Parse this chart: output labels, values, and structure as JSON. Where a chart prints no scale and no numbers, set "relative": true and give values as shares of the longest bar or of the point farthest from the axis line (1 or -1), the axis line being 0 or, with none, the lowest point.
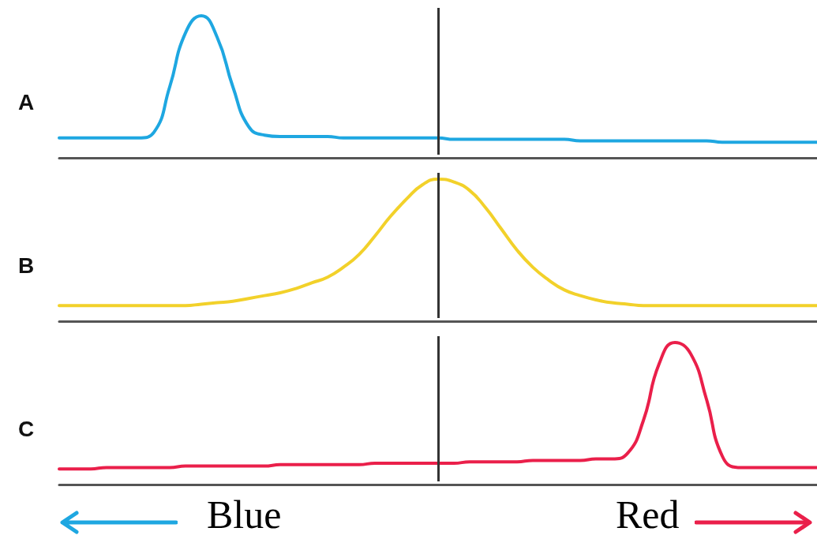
{
  "chart_data": [
    {
      "type": "line",
      "title": "A",
      "relative": true,
      "tick_labels": false,
      "grid": false,
      "marker": "none",
      "categories": [
        null,
        null,
        null,
        null,
        null,
        null,
        null,
        null,
        null,
        null,
        null,
        null,
        null,
        null,
        null,
        null,
        null,
        null,
        null,
        null,
        null,
        null,
        null,
        null,
        null,
        null,
        null,
        null,
        null,
        null,
        null,
        null,
        null,
        null,
        null,
        null,
        null,
        null,
        null,
        null,
        null,
        null,
        null,
        null,
        null,
        null,
        null,
        null,
        null
      ],
      "series": [
        {
          "color": "#1ea7e1",
          "values": [
            0.14,
            0.14,
            0.14,
            0.14,
            0.14,
            0.14,
            0.18,
            0.5,
            0.88,
            1.0,
            0.85,
            0.5,
            0.22,
            0.16,
            0.15,
            0.15,
            0.15,
            0.15,
            0.14,
            0.14,
            0.14,
            0.14,
            0.14,
            0.14,
            0.14,
            0.13,
            0.13,
            0.13,
            0.13,
            0.13,
            0.13,
            0.13,
            0.13,
            0.12,
            0.12,
            0.12,
            0.12,
            0.12,
            0.12,
            0.12,
            0.12,
            0.12,
            0.11,
            0.11,
            0.11,
            0.11,
            0.11,
            0.11,
            0.11
          ]
        }
      ]
    },
    {
      "type": "line",
      "title": "B",
      "relative": true,
      "tick_labels": false,
      "grid": false,
      "marker": "none",
      "categories": [
        null,
        null,
        null,
        null,
        null,
        null,
        null,
        null,
        null,
        null,
        null,
        null,
        null,
        null,
        null,
        null,
        null,
        null,
        null,
        null,
        null,
        null,
        null,
        null,
        null,
        null,
        null,
        null,
        null,
        null,
        null,
        null,
        null,
        null,
        null,
        null,
        null,
        null,
        null,
        null,
        null,
        null,
        null,
        null,
        null,
        null,
        null,
        null,
        null
      ],
      "series": [
        {
          "color": "#f2d12a",
          "values": [
            0.11,
            0.11,
            0.11,
            0.11,
            0.11,
            0.11,
            0.11,
            0.11,
            0.11,
            0.12,
            0.13,
            0.14,
            0.16,
            0.18,
            0.2,
            0.23,
            0.27,
            0.31,
            0.38,
            0.47,
            0.6,
            0.74,
            0.86,
            0.96,
            1.0,
            0.98,
            0.92,
            0.8,
            0.65,
            0.5,
            0.38,
            0.29,
            0.22,
            0.18,
            0.15,
            0.13,
            0.12,
            0.11,
            0.11,
            0.11,
            0.11,
            0.11,
            0.11,
            0.11,
            0.11,
            0.11,
            0.11,
            0.11,
            0.11
          ]
        }
      ]
    },
    {
      "type": "line",
      "title": "C",
      "relative": true,
      "tick_labels": false,
      "grid": false,
      "marker": "none",
      "annotations": [
        "Blue",
        "Red"
      ],
      "categories": [
        null,
        null,
        null,
        null,
        null,
        null,
        null,
        null,
        null,
        null,
        null,
        null,
        null,
        null,
        null,
        null,
        null,
        null,
        null,
        null,
        null,
        null,
        null,
        null,
        null,
        null,
        null,
        null,
        null,
        null,
        null,
        null,
        null,
        null,
        null,
        null,
        null,
        null,
        null,
        null,
        null,
        null,
        null,
        null,
        null,
        null,
        null,
        null,
        null
      ],
      "series": [
        {
          "color": "#ea1f4a",
          "values": [
            0.11,
            0.11,
            0.11,
            0.12,
            0.12,
            0.12,
            0.12,
            0.12,
            0.13,
            0.13,
            0.13,
            0.13,
            0.13,
            0.13,
            0.14,
            0.14,
            0.14,
            0.14,
            0.14,
            0.14,
            0.15,
            0.15,
            0.15,
            0.15,
            0.15,
            0.15,
            0.16,
            0.16,
            0.16,
            0.16,
            0.17,
            0.17,
            0.17,
            0.17,
            0.18,
            0.18,
            0.22,
            0.45,
            0.85,
            1.0,
            0.92,
            0.6,
            0.2,
            0.12,
            0.12,
            0.12,
            0.12,
            0.12,
            0.12
          ]
        }
      ]
    }
  ]
}
